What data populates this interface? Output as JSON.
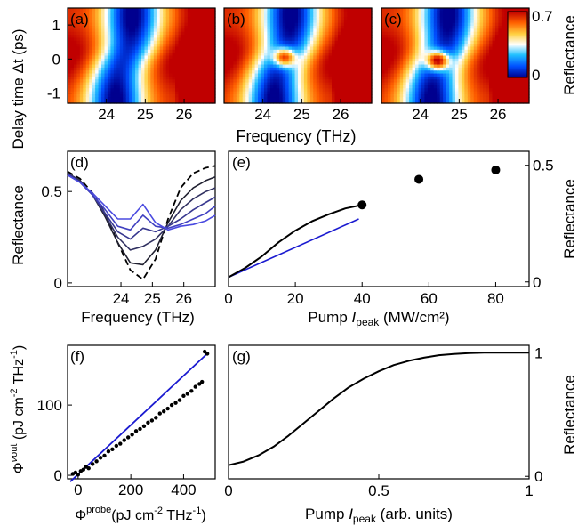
{
  "chart_data": [
    {
      "panel": "a",
      "type": "heatmap",
      "panel_label": "(a)",
      "x_ticks": [
        "24",
        "25",
        "26"
      ],
      "x_tick_values": [
        24,
        25,
        26
      ],
      "y_ticks": [
        "1",
        "0",
        "-1"
      ],
      "y_tick_values": [
        1,
        0,
        -1
      ],
      "xlim": [
        23.0,
        26.8
      ],
      "ylim": [
        -1.3,
        1.5
      ],
      "ylabel": "Delay time Δt (ps)",
      "xlabel": "Frequency (THz)",
      "dip_center": 24.45,
      "has_bump": false
    },
    {
      "panel": "b",
      "type": "heatmap",
      "panel_label": "(b)",
      "x_ticks": [
        "24",
        "25",
        "26"
      ],
      "x_tick_values": [
        24,
        25,
        26
      ],
      "xlim": [
        23.0,
        26.8
      ],
      "ylim": [
        -1.3,
        1.5
      ],
      "dip_center": 24.5,
      "has_bump": true,
      "bump_x": 24.55,
      "bump_y": 0.05,
      "bump_level": 0.55
    },
    {
      "panel": "c",
      "type": "heatmap",
      "panel_label": "(c)",
      "x_ticks": [
        "24",
        "25",
        "26"
      ],
      "x_tick_values": [
        24,
        25,
        26
      ],
      "xlim": [
        23.0,
        26.8
      ],
      "ylim": [
        -1.3,
        1.5
      ],
      "dip_center": 24.5,
      "has_bump": true,
      "bump_x": 24.45,
      "bump_y": -0.05,
      "bump_level": 0.65,
      "colorbar": {
        "min": 0,
        "max": 0.7,
        "tick_labels": [
          "0.7",
          "0"
        ],
        "label": "Reflectance",
        "colors": [
          "#00008f",
          "#0050ff",
          "#20c0ff",
          "#ffffff",
          "#ffd040",
          "#ff6000",
          "#c00000"
        ]
      }
    },
    {
      "panel": "d",
      "type": "line",
      "panel_label": "(d)",
      "xlabel": "Frequency (THz)",
      "ylabel": "Reflectance",
      "xlim": [
        22.3,
        27.0
      ],
      "ylim": [
        -0.02,
        0.72
      ],
      "x_ticks": [
        "24",
        "25",
        "26"
      ],
      "x_tick_values": [
        24,
        25,
        26
      ],
      "y_ticks": [
        "0.5",
        "0"
      ],
      "y_tick_values": [
        0.5,
        0
      ],
      "x": [
        22.3,
        22.7,
        23.1,
        23.5,
        23.9,
        24.3,
        24.7,
        25.1,
        25.5,
        25.9,
        26.3,
        26.7,
        27.0
      ],
      "series": [
        {
          "values": [
            0.61,
            0.57,
            0.49,
            0.38,
            0.22,
            0.07,
            0.02,
            0.13,
            0.35,
            0.52,
            0.6,
            0.63,
            0.64
          ],
          "color": "#000000",
          "dash": true
        },
        {
          "values": [
            0.6,
            0.56,
            0.48,
            0.36,
            0.22,
            0.11,
            0.1,
            0.18,
            0.33,
            0.45,
            0.52,
            0.56,
            0.58
          ],
          "color": "#202030",
          "dash": false
        },
        {
          "values": [
            0.6,
            0.56,
            0.48,
            0.37,
            0.25,
            0.18,
            0.2,
            0.24,
            0.31,
            0.4,
            0.46,
            0.5,
            0.52
          ],
          "color": "#303060",
          "dash": false
        },
        {
          "values": [
            0.6,
            0.55,
            0.48,
            0.38,
            0.28,
            0.24,
            0.3,
            0.28,
            0.31,
            0.35,
            0.4,
            0.44,
            0.47
          ],
          "color": "#383890",
          "dash": false
        },
        {
          "values": [
            0.59,
            0.55,
            0.48,
            0.4,
            0.31,
            0.29,
            0.37,
            0.31,
            0.3,
            0.32,
            0.35,
            0.38,
            0.42
          ],
          "color": "#4040c0",
          "dash": false
        },
        {
          "values": [
            0.59,
            0.55,
            0.49,
            0.42,
            0.35,
            0.35,
            0.43,
            0.33,
            0.29,
            0.31,
            0.32,
            0.34,
            0.37
          ],
          "color": "#4a4ae0",
          "dash": false
        }
      ]
    },
    {
      "panel": "e",
      "type": "scatter",
      "panel_label": "(e)",
      "xlabel": "Pump I_peak (MW/cm²)",
      "xlabel_main": "Pump ",
      "xlabel_var": "I",
      "xlabel_sub": "peak",
      "xlabel_unit": " (MW/cm²)",
      "ylabel": "Reflectance",
      "xlim": [
        0,
        90
      ],
      "ylim": [
        -0.02,
        0.56
      ],
      "x_ticks": [
        "0",
        "20",
        "40",
        "60",
        "80"
      ],
      "x_tick_values": [
        0,
        20,
        40,
        60,
        80
      ],
      "y_ticks": [
        "0.5",
        "0"
      ],
      "y_tick_values": [
        0.5,
        0
      ],
      "points": {
        "x": [
          40,
          57,
          80
        ],
        "y": [
          0.33,
          0.44,
          0.48
        ]
      },
      "measured_curve": {
        "x": [
          0,
          5,
          10,
          15,
          20,
          25,
          30,
          35,
          40
        ],
        "y": [
          0.02,
          0.06,
          0.11,
          0.17,
          0.22,
          0.26,
          0.29,
          0.315,
          0.33
        ]
      },
      "linear_fit": {
        "x": [
          0,
          39
        ],
        "y": [
          0.02,
          0.27
        ],
        "color": "#1a1ad0"
      }
    },
    {
      "panel": "f",
      "type": "scatter",
      "panel_label": "(f)",
      "xlabel": "Φν^probe (pJ cm⁻² THz⁻¹)",
      "ylabel": "Φν^out (pJ cm⁻² THz⁻¹)",
      "xlim": [
        -40,
        520
      ],
      "ylim": [
        -5,
        185
      ],
      "x_ticks": [
        "0",
        "200",
        "400"
      ],
      "x_tick_values": [
        0,
        200,
        400
      ],
      "y_ticks": [
        "100",
        "0"
      ],
      "y_tick_values": [
        100,
        0
      ],
      "points": {
        "x": [
          -20,
          -10,
          0,
          10,
          20,
          30,
          40,
          55,
          70,
          85,
          100,
          115,
          130,
          145,
          160,
          175,
          190,
          205,
          220,
          235,
          250,
          265,
          280,
          295,
          310,
          325,
          340,
          355,
          370,
          385,
          400,
          415,
          430,
          445,
          460,
          470,
          480,
          490
        ],
        "y": [
          2,
          4,
          1,
          6,
          8,
          12,
          10,
          16,
          20,
          25,
          28,
          34,
          37,
          42,
          45,
          50,
          54,
          58,
          63,
          66,
          70,
          75,
          78,
          82,
          88,
          91,
          95,
          100,
          103,
          107,
          113,
          116,
          120,
          126,
          130,
          133,
          176,
          173
        ]
      },
      "linear_fit": {
        "x": [
          -30,
          495
        ],
        "y": [
          -9,
          175
        ],
        "color": "#1a1ad0"
      }
    },
    {
      "panel": "g",
      "type": "line",
      "panel_label": "(g)",
      "xlabel": "Pump I_peak (arb. units)",
      "xlabel_main": "Pump ",
      "xlabel_var": "I",
      "xlabel_sub": "peak",
      "xlabel_unit": " (arb. units)",
      "ylabel": "Reflectance",
      "xlim": [
        0,
        1
      ],
      "ylim": [
        -0.02,
        1.06
      ],
      "x_ticks": [
        "0",
        "0.5",
        "1"
      ],
      "x_tick_values": [
        0,
        0.5,
        1
      ],
      "y_ticks": [
        "1",
        "0"
      ],
      "y_tick_values": [
        1,
        0
      ],
      "x": [
        0,
        0.05,
        0.1,
        0.15,
        0.2,
        0.25,
        0.3,
        0.35,
        0.4,
        0.45,
        0.5,
        0.55,
        0.6,
        0.65,
        0.7,
        0.75,
        0.8,
        0.85,
        0.9,
        0.95,
        1.0
      ],
      "values": [
        0.09,
        0.12,
        0.17,
        0.24,
        0.33,
        0.43,
        0.53,
        0.63,
        0.72,
        0.79,
        0.85,
        0.9,
        0.935,
        0.96,
        0.98,
        0.99,
        0.997,
        1.0,
        1.0,
        1.0,
        1.0
      ]
    }
  ]
}
